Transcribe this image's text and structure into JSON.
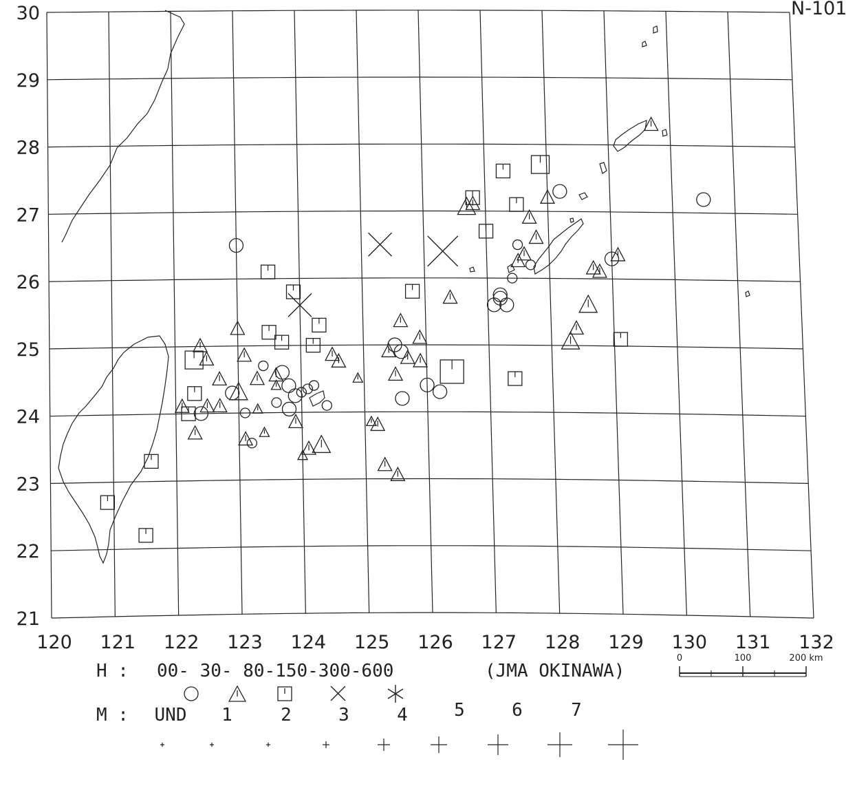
{
  "header": {
    "corner_text": "N-101"
  },
  "map": {
    "region": "Taiwan - Ryukyu (Okinawa) region",
    "lon_labels": [
      "120",
      "121",
      "122",
      "123",
      "124",
      "125",
      "126",
      "127",
      "128",
      "129",
      "130",
      "131",
      "132"
    ],
    "lat_labels": [
      "30",
      "29",
      "28",
      "27",
      "26",
      "25",
      "24",
      "23",
      "22",
      "21"
    ],
    "scale_bar": {
      "labels": [
        "0",
        "100",
        "200 km"
      ]
    }
  },
  "legend": {
    "depth_row_prefix": "H :",
    "depth_ranges": "00- 30- 80-150-300-600",
    "source": "(JMA OKINAWA)",
    "depth_symbols": [
      "circle",
      "triangle",
      "square",
      "x-cross",
      "asterisk"
    ],
    "magnitude_row_prefix": "M :",
    "magnitude_labels": [
      "UND",
      "1",
      "2",
      "3",
      "4",
      "5",
      "6",
      "7"
    ]
  },
  "events": [
    {
      "type": "square",
      "lon": 123.5,
      "lat": 26.1,
      "mag": 3
    },
    {
      "type": "circle",
      "lon": 123.0,
      "lat": 26.5,
      "mag": 3
    },
    {
      "type": "square",
      "lon": 123.9,
      "lat": 25.8,
      "mag": 3
    },
    {
      "type": "x-cross",
      "lon": 124.0,
      "lat": 25.6,
      "mag": 5
    },
    {
      "type": "x-cross",
      "lon": 125.3,
      "lat": 26.5,
      "mag": 5
    },
    {
      "type": "x-cross",
      "lon": 126.3,
      "lat": 26.4,
      "mag": 6
    },
    {
      "type": "square",
      "lon": 125.8,
      "lat": 25.8,
      "mag": 3
    },
    {
      "type": "square",
      "lon": 127.3,
      "lat": 27.6,
      "mag": 3
    },
    {
      "type": "square",
      "lon": 127.9,
      "lat": 27.7,
      "mag": 4
    },
    {
      "type": "square",
      "lon": 126.8,
      "lat": 27.2,
      "mag": 3
    },
    {
      "type": "triangle",
      "lon": 126.7,
      "lat": 27.05,
      "mag": 4
    },
    {
      "type": "triangle",
      "lon": 126.8,
      "lat": 27.1,
      "mag": 3
    },
    {
      "type": "square",
      "lon": 127.5,
      "lat": 27.1,
      "mag": 3
    },
    {
      "type": "triangle",
      "lon": 128.0,
      "lat": 27.2,
      "mag": 3
    },
    {
      "type": "circle",
      "lon": 128.2,
      "lat": 27.3,
      "mag": 3
    },
    {
      "type": "circle",
      "lon": 130.5,
      "lat": 27.2,
      "mag": 3
    },
    {
      "type": "triangle",
      "lon": 127.7,
      "lat": 26.9,
      "mag": 3
    },
    {
      "type": "square",
      "lon": 127.0,
      "lat": 26.7,
      "mag": 3
    },
    {
      "type": "triangle",
      "lon": 127.8,
      "lat": 26.6,
      "mag": 3
    },
    {
      "type": "circle",
      "lon": 127.5,
      "lat": 26.5,
      "mag": 2
    },
    {
      "type": "triangle",
      "lon": 127.6,
      "lat": 26.35,
      "mag": 3
    },
    {
      "type": "triangle",
      "lon": 127.5,
      "lat": 26.25,
      "mag": 3
    },
    {
      "type": "circle",
      "lon": 127.7,
      "lat": 26.2,
      "mag": 2
    },
    {
      "type": "circle",
      "lon": 127.4,
      "lat": 26.0,
      "mag": 2
    },
    {
      "type": "triangle",
      "lon": 128.7,
      "lat": 26.15,
      "mag": 3
    },
    {
      "type": "triangle",
      "lon": 128.8,
      "lat": 26.1,
      "mag": 3
    },
    {
      "type": "circle",
      "lon": 129.0,
      "lat": 26.3,
      "mag": 3
    },
    {
      "type": "triangle",
      "lon": 129.1,
      "lat": 26.35,
      "mag": 3
    },
    {
      "type": "circle",
      "lon": 127.1,
      "lat": 25.6,
      "mag": 3
    },
    {
      "type": "circle",
      "lon": 127.2,
      "lat": 25.7,
      "mag": 3
    },
    {
      "type": "circle",
      "lon": 127.3,
      "lat": 25.6,
      "mag": 3
    },
    {
      "type": "circle",
      "lon": 127.2,
      "lat": 25.75,
      "mag": 3
    },
    {
      "type": "triangle",
      "lon": 126.4,
      "lat": 25.7,
      "mag": 3
    },
    {
      "type": "triangle",
      "lon": 128.6,
      "lat": 25.6,
      "mag": 4
    },
    {
      "type": "triangle",
      "lon": 128.4,
      "lat": 25.25,
      "mag": 3
    },
    {
      "type": "triangle",
      "lon": 128.3,
      "lat": 25.05,
      "mag": 4
    },
    {
      "type": "square",
      "lon": 129.1,
      "lat": 25.1,
      "mag": 3
    },
    {
      "type": "square",
      "lon": 124.3,
      "lat": 25.3,
      "mag": 3
    },
    {
      "type": "triangle",
      "lon": 123.0,
      "lat": 25.25,
      "mag": 3
    },
    {
      "type": "square",
      "lon": 123.5,
      "lat": 25.2,
      "mag": 3
    },
    {
      "type": "square",
      "lon": 123.7,
      "lat": 25.05,
      "mag": 3
    },
    {
      "type": "square",
      "lon": 124.2,
      "lat": 25.0,
      "mag": 3
    },
    {
      "type": "triangle",
      "lon": 123.1,
      "lat": 24.85,
      "mag": 3
    },
    {
      "type": "triangle",
      "lon": 122.4,
      "lat": 25.0,
      "mag": 3
    },
    {
      "type": "triangle",
      "lon": 122.5,
      "lat": 24.8,
      "mag": 3
    },
    {
      "type": "triangle",
      "lon": 122.7,
      "lat": 24.5,
      "mag": 3
    },
    {
      "type": "square",
      "lon": 122.3,
      "lat": 24.8,
      "mag": 4
    },
    {
      "type": "square",
      "lon": 122.3,
      "lat": 24.3,
      "mag": 3
    },
    {
      "type": "square",
      "lon": 122.2,
      "lat": 24.0,
      "mag": 3
    },
    {
      "type": "triangle",
      "lon": 122.1,
      "lat": 24.1,
      "mag": 3
    },
    {
      "type": "circle",
      "lon": 122.4,
      "lat": 24.0,
      "mag": 3
    },
    {
      "type": "triangle",
      "lon": 122.5,
      "lat": 24.1,
      "mag": 3
    },
    {
      "type": "triangle",
      "lon": 122.7,
      "lat": 24.1,
      "mag": 3
    },
    {
      "type": "triangle",
      "lon": 122.3,
      "lat": 23.7,
      "mag": 3
    },
    {
      "type": "circle",
      "lon": 122.9,
      "lat": 24.3,
      "mag": 3
    },
    {
      "type": "triangle",
      "lon": 123.0,
      "lat": 24.3,
      "mag": 4
    },
    {
      "type": "circle",
      "lon": 123.1,
      "lat": 24.0,
      "mag": 2
    },
    {
      "type": "triangle",
      "lon": 123.3,
      "lat": 24.05,
      "mag": 2
    },
    {
      "type": "triangle",
      "lon": 123.1,
      "lat": 23.6,
      "mag": 3
    },
    {
      "type": "circle",
      "lon": 123.2,
      "lat": 23.55,
      "mag": 2
    },
    {
      "type": "triangle",
      "lon": 123.4,
      "lat": 23.7,
      "mag": 2
    },
    {
      "type": "triangle",
      "lon": 123.3,
      "lat": 24.5,
      "mag": 3
    },
    {
      "type": "circle",
      "lon": 123.4,
      "lat": 24.7,
      "mag": 2
    },
    {
      "type": "triangle",
      "lon": 123.6,
      "lat": 24.55,
      "mag": 3
    },
    {
      "type": "circle",
      "lon": 123.7,
      "lat": 24.6,
      "mag": 3
    },
    {
      "type": "circle",
      "lon": 123.8,
      "lat": 24.4,
      "mag": 3
    },
    {
      "type": "circle",
      "lon": 123.9,
      "lat": 24.25,
      "mag": 3
    },
    {
      "type": "circle",
      "lon": 124.0,
      "lat": 24.3,
      "mag": 2
    },
    {
      "type": "circle",
      "lon": 124.1,
      "lat": 24.35,
      "mag": 2
    },
    {
      "type": "circle",
      "lon": 124.2,
      "lat": 24.4,
      "mag": 2
    },
    {
      "type": "circle",
      "lon": 123.6,
      "lat": 24.15,
      "mag": 2
    },
    {
      "type": "circle",
      "lon": 123.8,
      "lat": 24.05,
      "mag": 3
    },
    {
      "type": "triangle",
      "lon": 123.6,
      "lat": 24.4,
      "mag": 2
    },
    {
      "type": "triangle",
      "lon": 123.9,
      "lat": 23.85,
      "mag": 3
    },
    {
      "type": "triangle",
      "lon": 124.1,
      "lat": 23.45,
      "mag": 3
    },
    {
      "type": "triangle",
      "lon": 124.3,
      "lat": 23.5,
      "mag": 4
    },
    {
      "type": "triangle",
      "lon": 124.0,
      "lat": 23.35,
      "mag": 2
    },
    {
      "type": "triangle",
      "lon": 124.5,
      "lat": 24.85,
      "mag": 3
    },
    {
      "type": "triangle",
      "lon": 124.6,
      "lat": 24.75,
      "mag": 3
    },
    {
      "type": "triangle",
      "lon": 124.9,
      "lat": 24.5,
      "mag": 2
    },
    {
      "type": "circle",
      "lon": 124.4,
      "lat": 24.1,
      "mag": 2
    },
    {
      "type": "triangle",
      "lon": 125.1,
      "lat": 23.85,
      "mag": 2
    },
    {
      "type": "triangle",
      "lon": 125.2,
      "lat": 23.8,
      "mag": 3
    },
    {
      "type": "triangle",
      "lon": 125.3,
      "lat": 23.2,
      "mag": 3
    },
    {
      "type": "triangle",
      "lon": 125.5,
      "lat": 23.05,
      "mag": 3
    },
    {
      "type": "triangle",
      "lon": 125.6,
      "lat": 25.35,
      "mag": 3
    },
    {
      "type": "triangle",
      "lon": 125.9,
      "lat": 25.1,
      "mag": 3
    },
    {
      "type": "circle",
      "lon": 125.5,
      "lat": 25.0,
      "mag": 3
    },
    {
      "type": "circle",
      "lon": 125.6,
      "lat": 24.9,
      "mag": 3
    },
    {
      "type": "triangle",
      "lon": 125.4,
      "lat": 24.9,
      "mag": 3
    },
    {
      "type": "triangle",
      "lon": 125.7,
      "lat": 24.8,
      "mag": 3
    },
    {
      "type": "triangle",
      "lon": 125.9,
      "lat": 24.75,
      "mag": 3
    },
    {
      "type": "triangle",
      "lon": 125.5,
      "lat": 24.55,
      "mag": 3
    },
    {
      "type": "circle",
      "lon": 125.6,
      "lat": 24.2,
      "mag": 3
    },
    {
      "type": "circle",
      "lon": 126.0,
      "lat": 24.4,
      "mag": 3
    },
    {
      "type": "circle",
      "lon": 126.2,
      "lat": 24.3,
      "mag": 3
    },
    {
      "type": "square",
      "lon": 126.4,
      "lat": 24.6,
      "mag": 5
    },
    {
      "type": "square",
      "lon": 127.4,
      "lat": 24.5,
      "mag": 3
    },
    {
      "type": "square",
      "lon": 121.6,
      "lat": 23.3,
      "mag": 3
    },
    {
      "type": "square",
      "lon": 120.9,
      "lat": 22.7,
      "mag": 3
    },
    {
      "type": "square",
      "lon": 121.5,
      "lat": 22.2,
      "mag": 3
    },
    {
      "type": "triangle",
      "lon": 129.7,
      "lat": 28.3,
      "mag": 3
    }
  ]
}
